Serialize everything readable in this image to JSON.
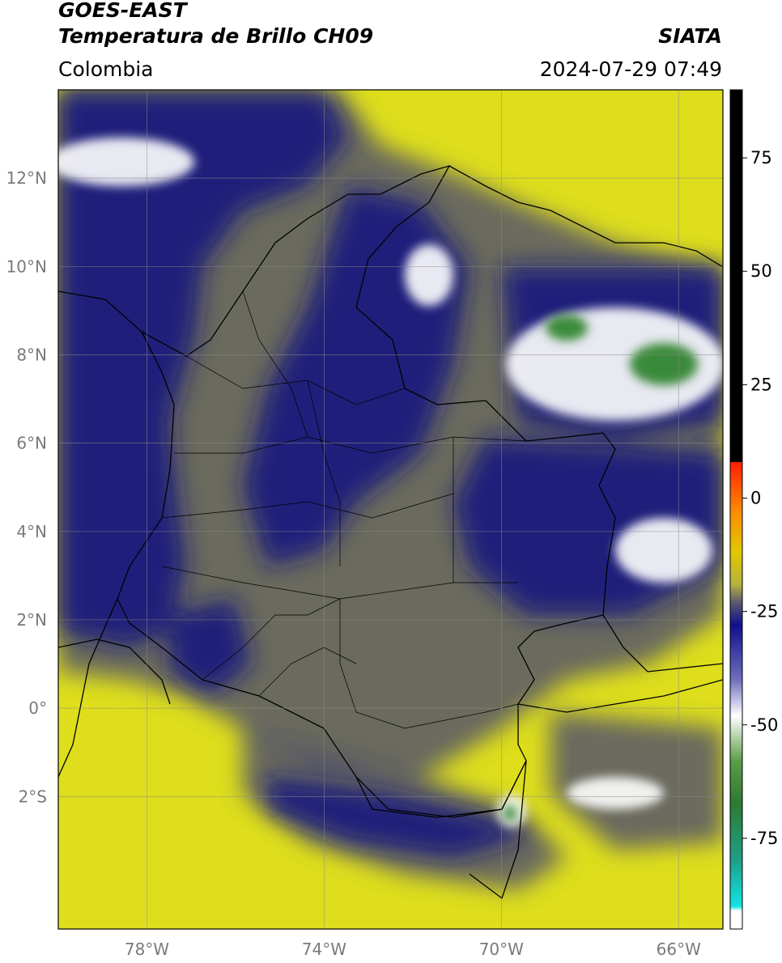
{
  "header": {
    "satellite": "GOES-EAST",
    "product": "Temperatura de Brillo CH09",
    "brand": "SIATA",
    "region": "Colombia",
    "datetime": "2024-07-29 07:49"
  },
  "map": {
    "lon_range": [
      -80,
      -65
    ],
    "lat_range": [
      -5,
      14
    ],
    "lat_ticks": [
      {
        "value": 12,
        "label": "12°N"
      },
      {
        "value": 10,
        "label": "10°N"
      },
      {
        "value": 8,
        "label": "8°N"
      },
      {
        "value": 6,
        "label": "6°N"
      },
      {
        "value": 4,
        "label": "4°N"
      },
      {
        "value": 2,
        "label": "2°N"
      },
      {
        "value": 0,
        "label": "0°"
      },
      {
        "value": -2,
        "label": "2°S"
      }
    ],
    "lon_ticks": [
      {
        "value": -78,
        "label": "78°W"
      },
      {
        "value": -74,
        "label": "74°W"
      },
      {
        "value": -70,
        "label": "70°W"
      },
      {
        "value": -66,
        "label": "66°W"
      }
    ],
    "colors": {
      "warm_background": "#dede1c",
      "mid_level": "#55556a",
      "cold_cloud": "#16167e",
      "very_cold": "#ffffff",
      "coldest": "#3a8a3a",
      "border_line": "#000000"
    }
  },
  "colorbar": {
    "range": [
      -95,
      90
    ],
    "ticks": [
      {
        "value": 75,
        "label": "75"
      },
      {
        "value": 50,
        "label": "50"
      },
      {
        "value": 25,
        "label": "25"
      },
      {
        "value": 0,
        "label": "0"
      },
      {
        "value": -25,
        "label": "-25"
      },
      {
        "value": -50,
        "label": "-50"
      },
      {
        "value": -75,
        "label": "-75"
      }
    ],
    "stops": [
      {
        "value": 90,
        "color": "#000000"
      },
      {
        "value": 8,
        "color": "#000000"
      },
      {
        "value": 7.9,
        "color": "#ff1e00"
      },
      {
        "value": -3,
        "color": "#ff8c00"
      },
      {
        "value": -12,
        "color": "#e0c800"
      },
      {
        "value": -19,
        "color": "#b4b43c"
      },
      {
        "value": -23,
        "color": "#5a5a6e"
      },
      {
        "value": -28,
        "color": "#10108c"
      },
      {
        "value": -40,
        "color": "#6e6ebe"
      },
      {
        "value": -48,
        "color": "#ffffff"
      },
      {
        "value": -58,
        "color": "#5a9e46"
      },
      {
        "value": -67,
        "color": "#2e7a32"
      },
      {
        "value": -80,
        "color": "#1ea088"
      },
      {
        "value": -90,
        "color": "#10e6e6"
      },
      {
        "value": -91,
        "color": "#ffffff"
      },
      {
        "value": -95,
        "color": "#ffffff"
      }
    ]
  }
}
